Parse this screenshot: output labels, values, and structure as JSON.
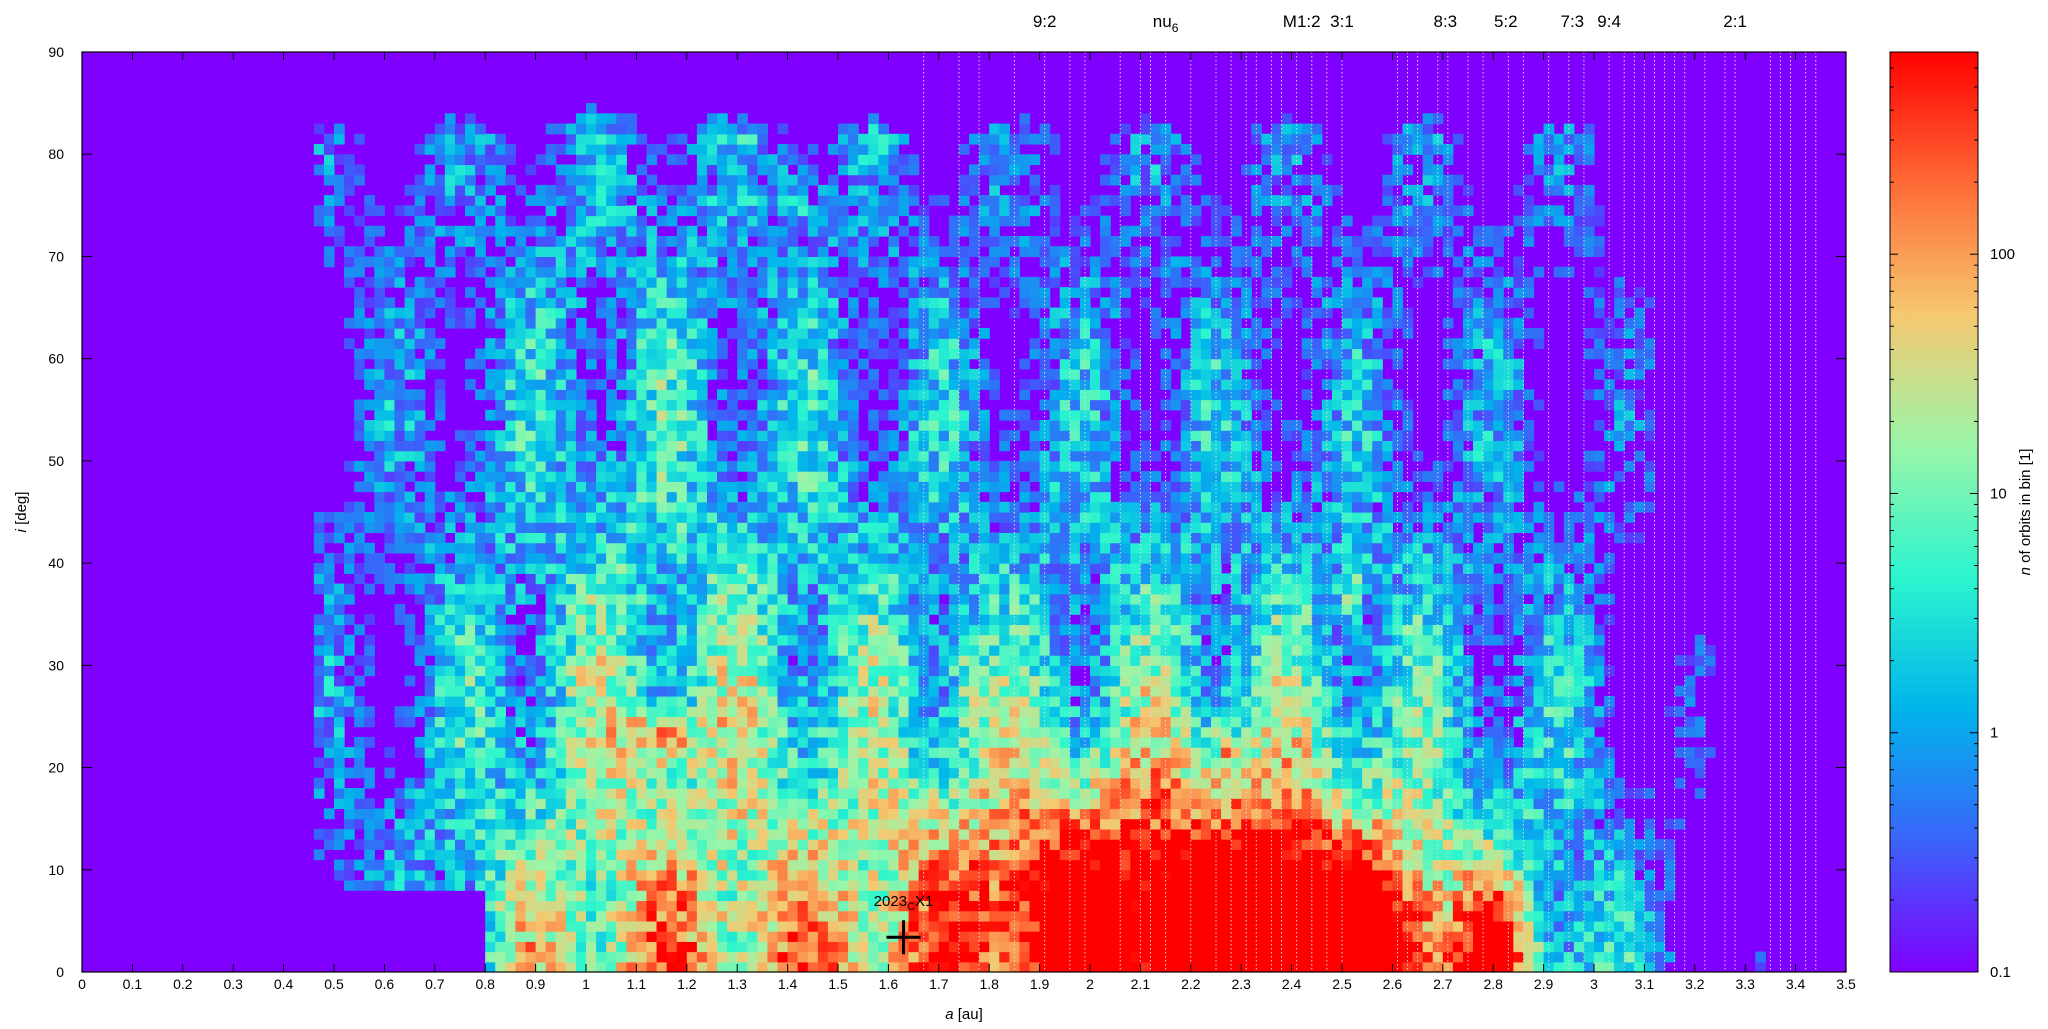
{
  "chart_data": {
    "type": "heatmap",
    "title": "",
    "xlabel": {
      "italic": "a",
      "rest": " [au]"
    },
    "ylabel": {
      "italic": "i",
      "rest": " [deg]"
    },
    "colorbar_label": {
      "italic": "n",
      "rest": " of orbits in bin [1]"
    },
    "xlim": [
      0,
      3.5
    ],
    "ylim": [
      0,
      90
    ],
    "x_ticks": [
      "0",
      "0.1",
      "0.2",
      "0.3",
      "0.4",
      "0.5",
      "0.6",
      "0.7",
      "0.8",
      "0.9",
      "1",
      "1.1",
      "1.2",
      "1.3",
      "1.4",
      "1.5",
      "1.6",
      "1.7",
      "1.8",
      "1.9",
      "2",
      "2.1",
      "2.2",
      "2.3",
      "2.4",
      "2.5",
      "2.6",
      "2.7",
      "2.8",
      "2.9",
      "3",
      "3.1",
      "3.2",
      "3.3",
      "3.4",
      "3.5"
    ],
    "y_ticks": [
      "0",
      "10",
      "20",
      "30",
      "40",
      "50",
      "60",
      "70",
      "80",
      "90"
    ],
    "colorbar": {
      "scale": "log",
      "range": [
        0.1,
        700
      ],
      "ticks": [
        {
          "value": 0.1,
          "label": "0.1"
        },
        {
          "value": 1,
          "label": "1"
        },
        {
          "value": 10,
          "label": "10"
        },
        {
          "value": 100,
          "label": "100"
        }
      ],
      "colors": [
        "#8000ff",
        "#3a64fa",
        "#00b4eb",
        "#2bf5ce",
        "#9af5a8",
        "#f5c870",
        "#ff6a36",
        "#ff0000"
      ]
    },
    "resonances": [
      {
        "label": "9:2",
        "a": 1.91
      },
      {
        "label": "nu",
        "sub": "6",
        "a": 2.15
      },
      {
        "label": "M1:2",
        "a": 2.42
      },
      {
        "label": "3:1",
        "a": 2.5
      },
      {
        "label": "8:3",
        "a": 2.705
      },
      {
        "label": "5:2",
        "a": 2.825
      },
      {
        "label": "7:3",
        "a": 2.957
      },
      {
        "label": "9:4",
        "a": 3.03
      },
      {
        "label": "2:1",
        "a": 3.28
      }
    ],
    "resonance_lines_a": [
      1.67,
      1.74,
      1.78,
      1.85,
      1.91,
      1.96,
      1.99,
      2.06,
      2.1,
      2.12,
      2.15,
      2.2,
      2.25,
      2.28,
      2.31,
      2.33,
      2.36,
      2.38,
      2.41,
      2.44,
      2.47,
      2.5,
      2.61,
      2.63,
      2.65,
      2.69,
      2.71,
      2.75,
      2.78,
      2.83,
      2.86,
      2.91,
      2.95,
      2.98,
      3.03,
      3.06,
      3.08,
      3.1,
      3.12,
      3.14,
      3.16,
      3.18,
      3.22,
      3.26,
      3.28,
      3.35,
      3.37,
      3.39,
      3.42,
      3.44
    ],
    "marker": {
      "label": "2023",
      "sub": "C",
      "suffix": "X1",
      "a": 1.63,
      "i": 3.4
    }
  }
}
